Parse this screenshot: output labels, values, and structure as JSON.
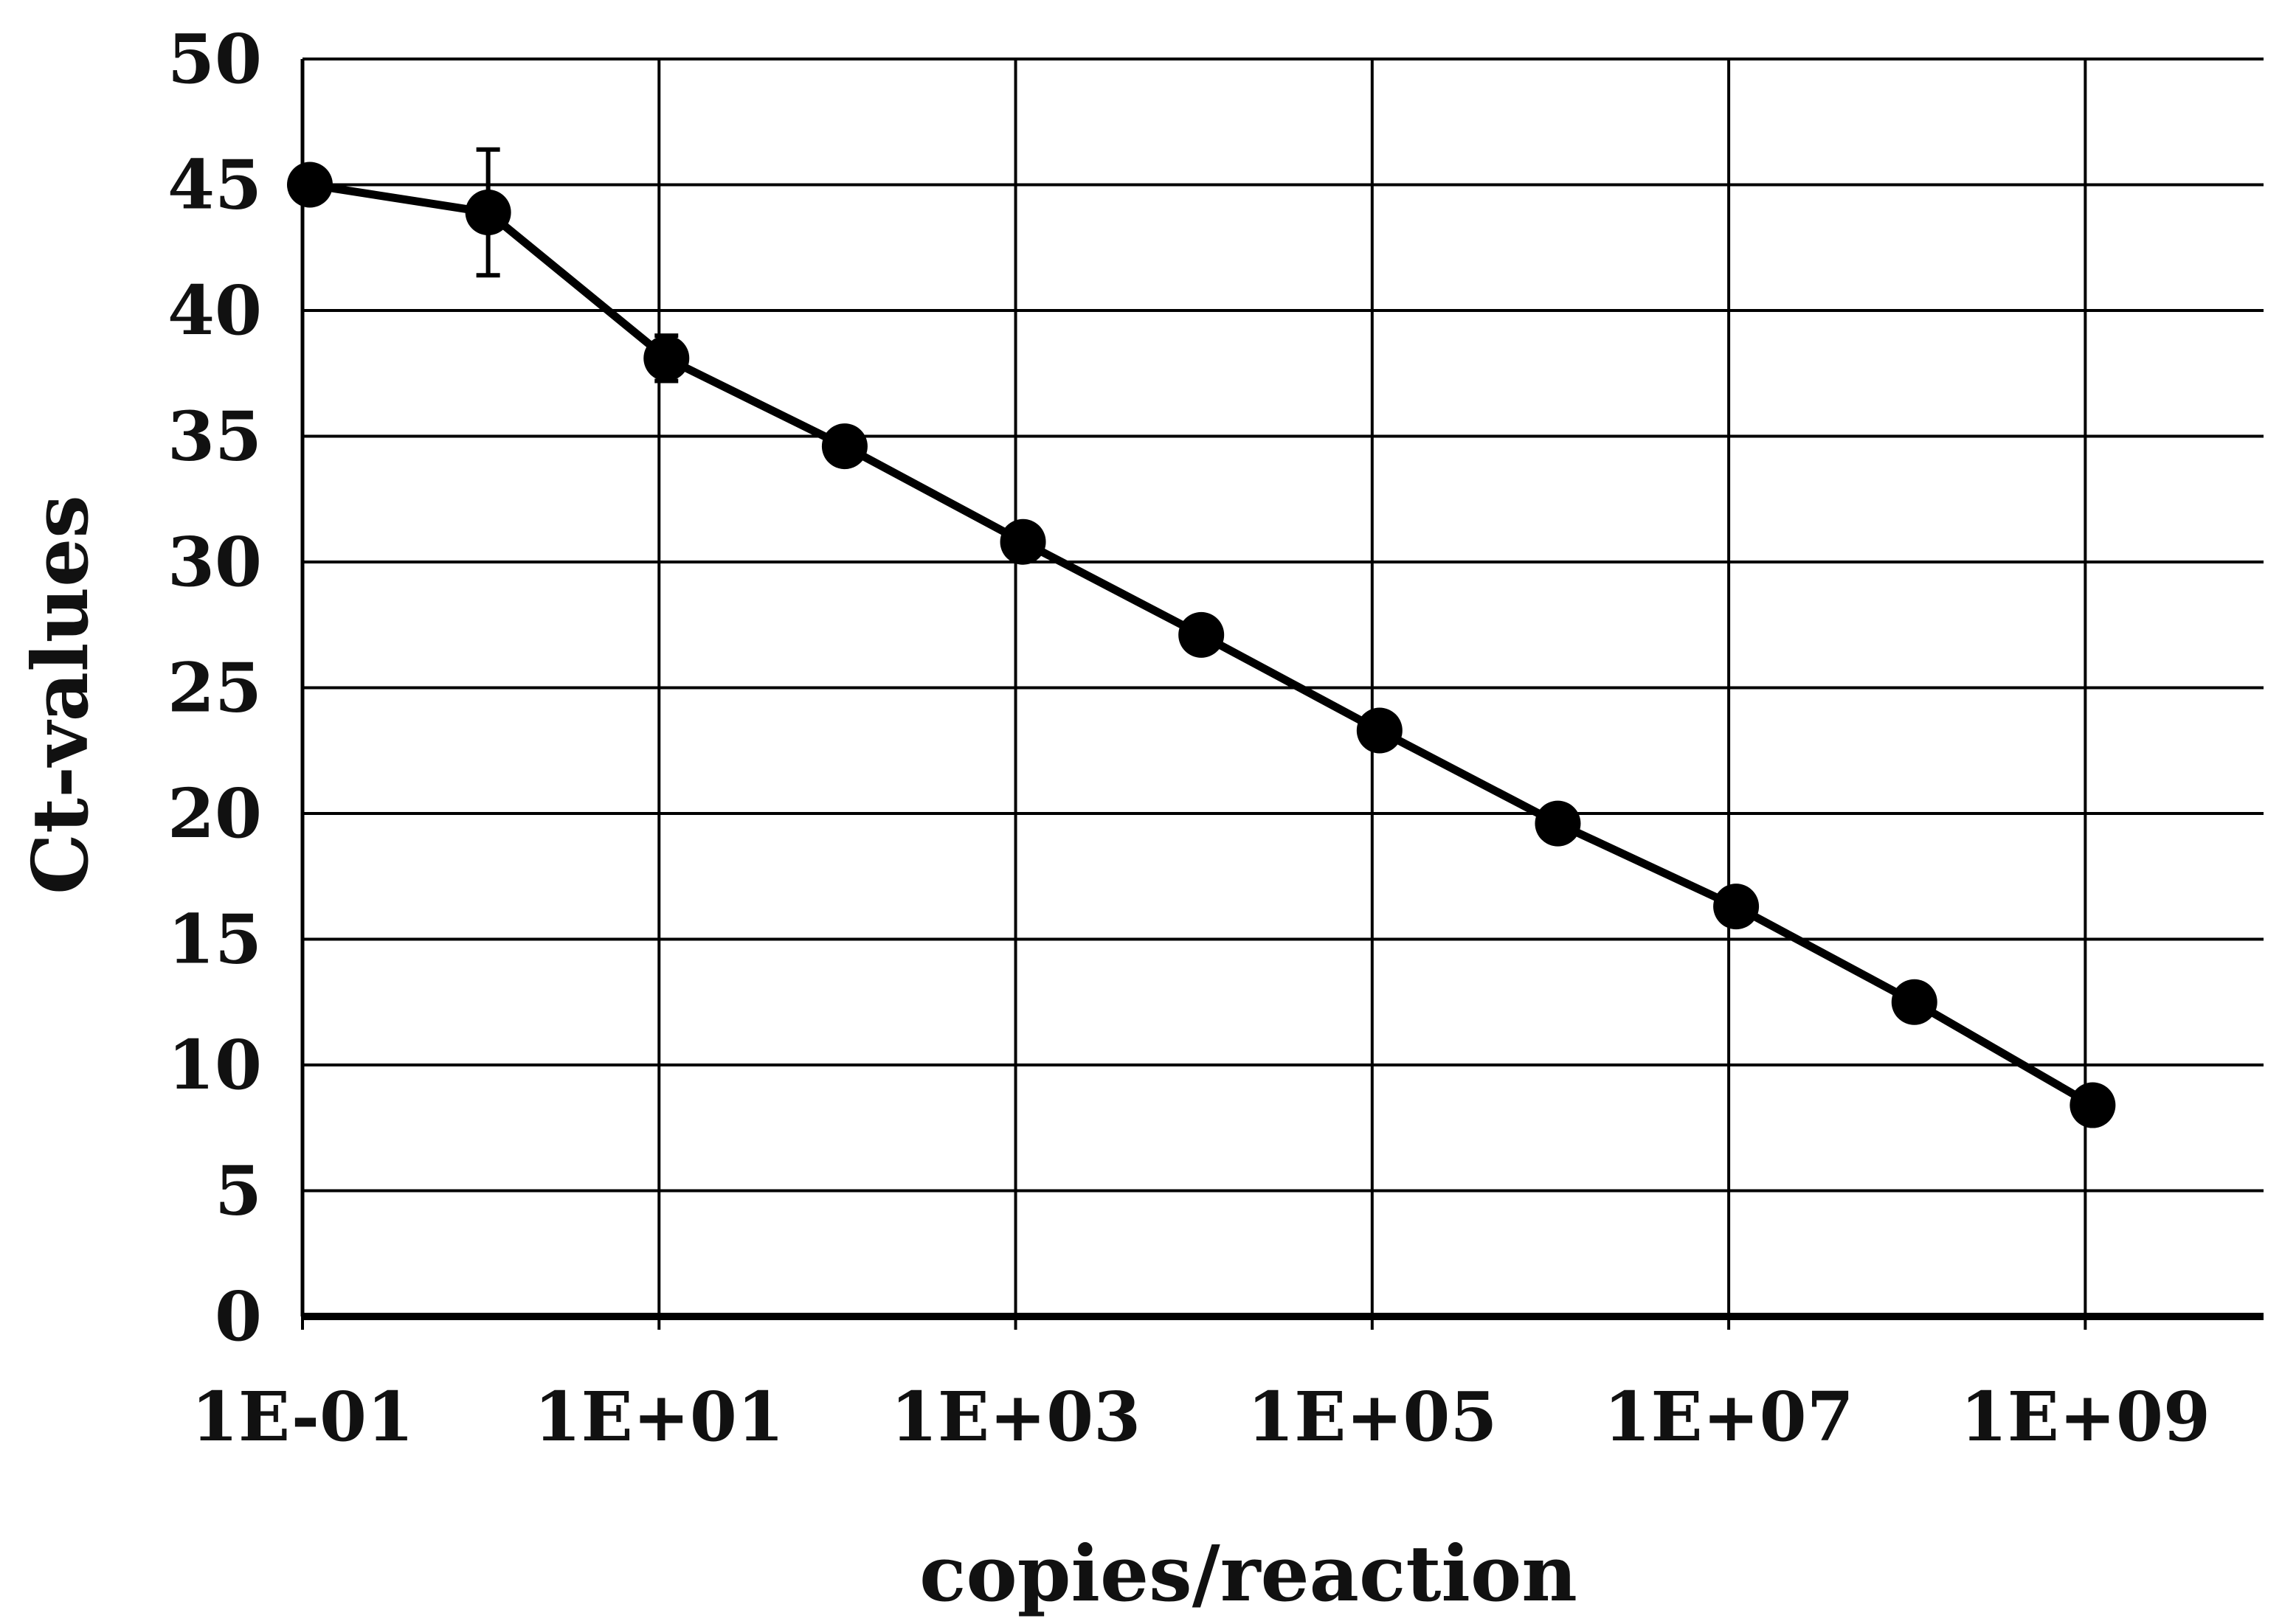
{
  "chart_data": {
    "type": "scatter",
    "xlabel": "copies/reaction",
    "ylabel": "Ct-values",
    "xscale": "log",
    "xlim": [
      0.1,
      10000000000
    ],
    "ylim": [
      0,
      50
    ],
    "grid": true,
    "legend": "none",
    "x_tick_labels": [
      "1E-01",
      "1E+01",
      "1E+03",
      "1E+05",
      "1E+07",
      "1E+09"
    ],
    "x_tick_values": [
      0.1,
      10,
      1000,
      100000,
      10000000,
      1000000000
    ],
    "y_tick_labels": [
      "0",
      "5",
      "10",
      "15",
      "20",
      "25",
      "30",
      "35",
      "40",
      "45",
      "50"
    ],
    "y_tick_values": [
      0,
      5,
      10,
      15,
      20,
      25,
      30,
      35,
      40,
      45,
      50
    ],
    "series": [
      {
        "color": "#000000",
        "x": [
          0.11,
          1.1,
          11,
          110,
          1100,
          11000,
          110000,
          1100000,
          11000000,
          110000000,
          1100000000
        ],
        "y": [
          45.0,
          43.9,
          38.1,
          34.6,
          30.8,
          27.1,
          23.3,
          19.6,
          16.3,
          12.5,
          8.4
        ],
        "error": [
          0,
          2.5,
          0.9,
          0,
          0,
          0,
          0,
          0,
          0,
          0,
          0
        ]
      }
    ]
  }
}
